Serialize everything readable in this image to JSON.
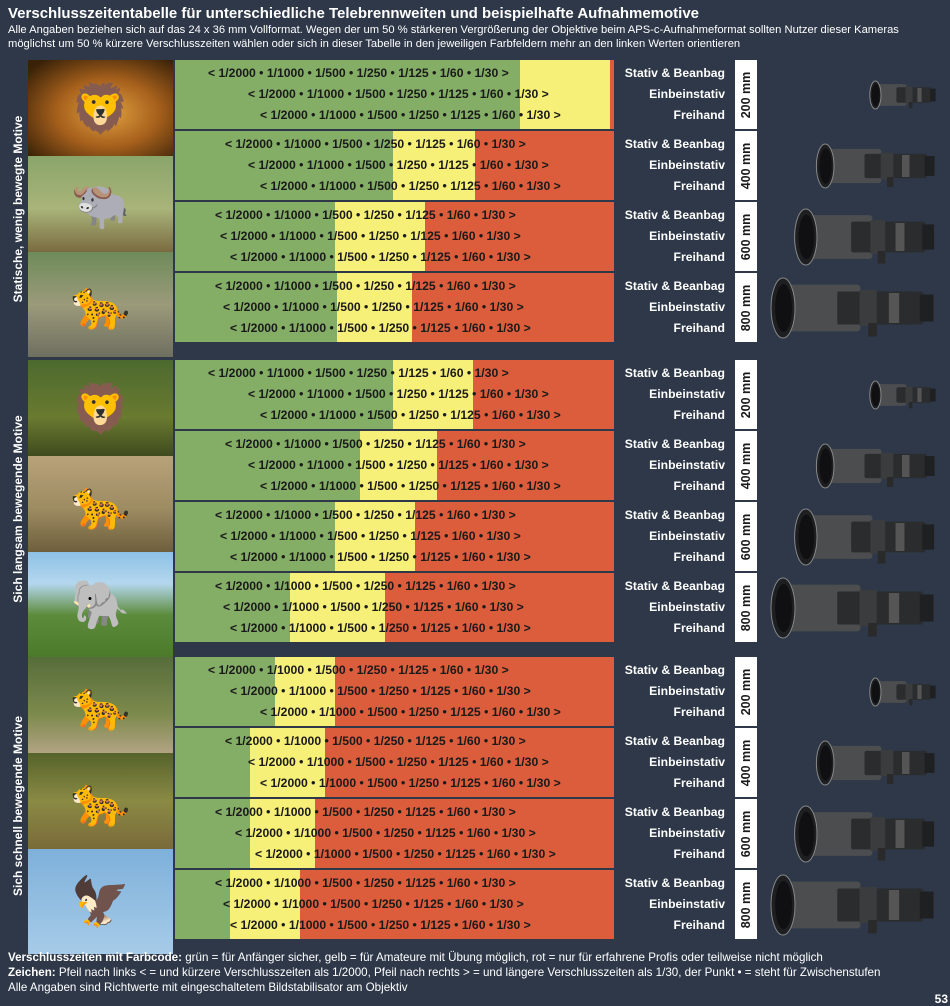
{
  "header": {
    "title": "Verschlusszeitentabelle für unterschiedliche Telebrennweiten und beispielhafte Aufnahmemotive",
    "subtitle": "Alle Angaben beziehen sich auf das 24 x 36 mm  Vollformat. Wegen der um 50 % stärkeren Vergrößerung der Objektive beim APS-c-Aufnahmeformat sollten Nutzer dieser Kameras möglichst um 50 % kürzere Verschlusszeiten wählen oder sich in dieser Tabelle in den jeweiligen Farbfeldern mehr an den linken Werten orientieren"
  },
  "support_labels": [
    "Stativ & Beanbag",
    "Einbeinstativ",
    "Freihand"
  ],
  "colors": {
    "background": "#2e3849",
    "green": "#84ad66",
    "yellow": "#f6ef78",
    "red": "#dc5d3c"
  },
  "groups": [
    {
      "label": "Statische, wenig bewegte Motive",
      "photos": [
        "lion-head-photo",
        "buffalo-photo",
        "leopard-on-rock-photo"
      ],
      "blocks": [
        {
          "focal": "200 mm",
          "lens": "lens-200mm-icon",
          "lines": [
            {
              "text": "< 1/2000 • 1/1000 • 1/500 • 1/250 • 1/125 • 1/60 • 1/30 >",
              "left": "< 1/2000 • 1/1000 • 1/500 • 1/250 • 1/125 • 1/60 • 1/30 >"
            },
            {
              "text": "< 1/2000 • 1/1000 • 1/500 • 1/250 • 1/125 • 1/60 • 1/30 >"
            },
            {
              "text": "< 1/2000 • 1/1000 • 1/500 • 1/250 • 1/125 • 1/60 • 1/30 >"
            }
          ]
        },
        {
          "focal": "400 mm",
          "lens": "lens-400mm-icon",
          "lines": [
            {
              "text": "< 1/2000 • 1/1000 • 1/500 • 1/250 • 1/125 • 1/60 • 1/30 >"
            },
            {
              "text": "< 1/2000 • 1/1000 • 1/500 • 1/250 • 1/125 • 1/60 • 1/30 >"
            },
            {
              "text": "< 1/2000 • 1/1000 • 1/500 • 1/250 • 1/125 • 1/60 • 1/30 >"
            }
          ]
        },
        {
          "focal": "600 mm",
          "lens": "lens-600mm-icon",
          "lines": [
            {
              "text": "< 1/2000 • 1/1000 • 1/500 • 1/250 • 1/125 • 1/60 • 1/30 >"
            },
            {
              "text": "< 1/2000 • 1/1000 • 1/500 • 1/250 • 1/125 • 1/60 • 1/30 >"
            },
            {
              "text": "< 1/2000 • 1/1000 • 1/500 • 1/250 • 1/125 • 1/60 • 1/30 >"
            }
          ]
        },
        {
          "focal": "800 mm",
          "lens": "lens-800mm-icon",
          "lines": [
            {
              "text": "< 1/2000 • 1/1000 • 1/500 • 1/250 • 1/125 • 1/60 • 1/30 >"
            },
            {
              "text": "< 1/2000 • 1/1000 • 1/500 • 1/250 • 1/125 • 1/60 • 1/30 >"
            },
            {
              "text": "< 1/2000 • 1/1000 • 1/500 • 1/250 • 1/125 • 1/60 • 1/30 >"
            }
          ]
        }
      ]
    },
    {
      "label": "Sich langsam bewegende Motive",
      "photos": [
        "walking-lion-photo",
        "leopard-walking-photo",
        "elephants-photo"
      ],
      "blocks": [
        {
          "focal": "200 mm",
          "lens": "lens-200mm-icon",
          "lines": [
            {
              "text": "< 1/2000 • 1/1000 • 1/500 • 1/250 • 1/125 • 1/60 • 1/30 >"
            },
            {
              "text": "< 1/2000 • 1/1000 • 1/500 • 1/250 • 1/125 • 1/60 • 1/30 >"
            },
            {
              "text": "< 1/2000 • 1/1000 • 1/500 • 1/250 • 1/125 • 1/60 • 1/30 >"
            }
          ]
        },
        {
          "focal": "400 mm",
          "lens": "lens-400mm-icon",
          "lines": [
            {
              "text": "< 1/2000 • 1/1000 • 1/500 • 1/250 • 1/125 • 1/60 • 1/30 >"
            },
            {
              "text": "< 1/2000 • 1/1000 • 1/500 • 1/250 • 1/125 • 1/60 • 1/30 >"
            },
            {
              "text": "< 1/2000 • 1/1000 • 1/500 • 1/250 • 1/125 • 1/60 • 1/30 >"
            }
          ]
        },
        {
          "focal": "600 mm",
          "lens": "lens-600mm-icon",
          "lines": [
            {
              "text": "< 1/2000 • 1/1000 • 1/500 • 1/250 • 1/125 • 1/60 • 1/30 >"
            },
            {
              "text": "< 1/2000 • 1/1000 • 1/500 • 1/250 • 1/125 • 1/60 • 1/30 >"
            },
            {
              "text": "< 1/2000 • 1/1000 • 1/500 • 1/250 • 1/125 • 1/60 • 1/30 >"
            }
          ]
        },
        {
          "focal": "800 mm",
          "lens": "lens-800mm-icon",
          "lines": [
            {
              "text": "< 1/2000 • 1/1000 • 1/500 • 1/250 • 1/125 • 1/60 • 1/30 >"
            },
            {
              "text": "< 1/2000 • 1/1000 • 1/500 • 1/250 • 1/125 • 1/60 • 1/30 >"
            },
            {
              "text": "< 1/2000 • 1/1000 • 1/500 • 1/250 • 1/125 • 1/60 • 1/30 >"
            }
          ]
        }
      ]
    },
    {
      "label": "Sich schnell bewegende Motive",
      "photos": [
        "leaping-leopard-photo",
        "running-cheetah-photo",
        "eagle-in-flight-photo"
      ],
      "blocks": [
        {
          "focal": "200 mm",
          "lens": "lens-200mm-icon",
          "lines": [
            {
              "text": "< 1/2000 • 1/1000 • 1/500 • 1/250 • 1/125 • 1/60 • 1/30 >"
            },
            {
              "text": "< 1/2000 • 1/1000 • 1/500 • 1/250 • 1/125 • 1/60 • 1/30 >"
            },
            {
              "text": "< 1/2000 • 1/1000 • 1/500 • 1/250 • 1/125 • 1/60 • 1/30 >"
            }
          ]
        },
        {
          "focal": "400 mm",
          "lens": "lens-400mm-icon",
          "lines": [
            {
              "text": "< 1/2000 • 1/1000 • 1/500 • 1/250 • 1/125 • 1/60 • 1/30 >"
            },
            {
              "text": "< 1/2000 • 1/1000 • 1/500 • 1/250 • 1/125 • 1/60 • 1/30 >"
            },
            {
              "text": "< 1/2000 • 1/1000 • 1/500 • 1/250 • 1/125 • 1/60 • 1/30 >"
            }
          ]
        },
        {
          "focal": "600 mm",
          "lens": "lens-600mm-icon",
          "lines": [
            {
              "text": "< 1/2000 • 1/1000 • 1/500 • 1/250 • 1/125 • 1/60 • 1/30 >"
            },
            {
              "text": "< 1/2000 • 1/1000 • 1/500 • 1/250 • 1/125 • 1/60 • 1/30 >"
            },
            {
              "text": "< 1/2000 • 1/1000 • 1/500 • 1/250 • 1/125 • 1/60 • 1/30 >"
            }
          ]
        },
        {
          "focal": "800 mm",
          "lens": "lens-800mm-icon",
          "lines": [
            {
              "text": "< 1/2000 • 1/1000 • 1/500 • 1/250 • 1/125 • 1/60 • 1/30 >"
            },
            {
              "text": "< 1/2000 • 1/1000 • 1/500 • 1/250 • 1/125 • 1/60 • 1/30 >"
            },
            {
              "text": "< 1/2000 • 1/1000 • 1/500 • 1/250 • 1/125 • 1/60 • 1/30 >"
            }
          ]
        }
      ]
    }
  ],
  "footer": {
    "line1_label": "Verschlusszeiten mit Farbcode:",
    "line1_text": " grün = für Anfänger sicher, gelb = für Amateure mit Übung möglich, rot = nur für erfahrene Profis oder teilweise nicht möglich",
    "line2_label": "Zeichen:",
    "line2_text": " Pfeil nach links < = und kürzere Verschlusszeiten als 1/2000, Pfeil nach rechts > = und längere Verschlusszeiten als 1/30, der Punkt • = steht für Zwischenstufen",
    "line3_text": "Alle Angaben sind Richtwerte mit eingeschaltetem Bildstabilisator am Objektiv"
  },
  "page_number": "53"
}
